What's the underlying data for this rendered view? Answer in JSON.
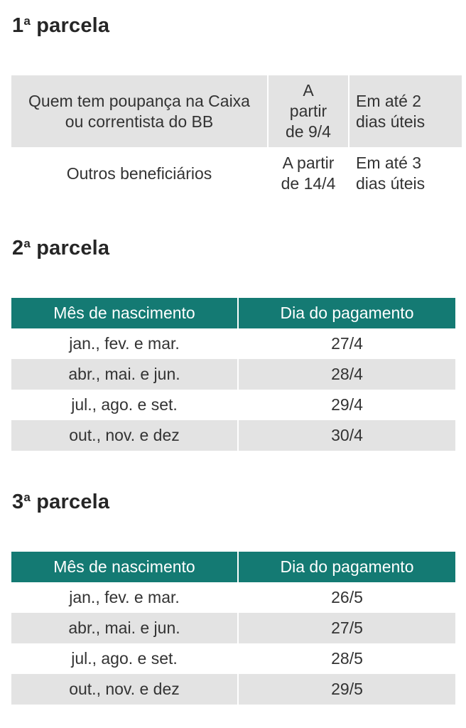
{
  "sections": [
    {
      "heading": {
        "num": "1",
        "sup": "a",
        "text": "parcela"
      },
      "rows": [
        {
          "group": "Quem tem poupança na Caixa ou correntista do BB",
          "start": "A partir de 9/4",
          "deadline": "Em até 2 dias úteis"
        },
        {
          "group": "Outros beneficiários",
          "start": "A partir de 14/4",
          "deadline": "Em até 3 dias úteis"
        }
      ]
    },
    {
      "heading": {
        "num": "2",
        "sup": "a",
        "text": "parcela"
      },
      "columns": [
        "Mês de nascimento",
        "Dia do pagamento"
      ],
      "rows": [
        {
          "months": "jan., fev. e mar.",
          "day": "27/4"
        },
        {
          "months": "abr., mai. e jun.",
          "day": "28/4"
        },
        {
          "months": "jul., ago. e set.",
          "day": "29/4"
        },
        {
          "months": "out., nov. e dez",
          "day": "30/4"
        }
      ]
    },
    {
      "heading": {
        "num": "3",
        "sup": "a",
        "text": "parcela"
      },
      "columns": [
        "Mês de nascimento",
        "Dia do pagamento"
      ],
      "rows": [
        {
          "months": "jan., fev. e mar.",
          "day": "26/5"
        },
        {
          "months": "abr., mai. e jun.",
          "day": "27/5"
        },
        {
          "months": "jul., ago. e set.",
          "day": "28/5"
        },
        {
          "months": "out., nov. e dez",
          "day": "29/5"
        }
      ]
    }
  ],
  "colors": {
    "header_teal": "#147a73",
    "row_shade": "#e3e3e3",
    "text": "#333333"
  }
}
